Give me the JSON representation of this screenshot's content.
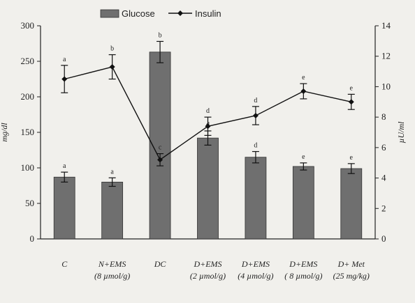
{
  "chart_data": {
    "type": "bar",
    "title": "",
    "categories": [
      [
        "C",
        ""
      ],
      [
        "N+EMS",
        "(8 µmol/g)"
      ],
      [
        "DC",
        ""
      ],
      [
        "D+EMS",
        "(2 µmol/g)"
      ],
      [
        "D+EMS",
        "(4 µmol/g)"
      ],
      [
        "D+EMS",
        "( 8 µmol/g)"
      ],
      [
        "D+ Met",
        "(25 mg/kg)"
      ]
    ],
    "series": [
      {
        "name": "Glucose",
        "type": "bar",
        "axis": "left",
        "values": [
          87,
          80,
          263,
          142,
          115,
          102,
          99
        ],
        "errors": [
          7,
          6,
          15,
          10,
          8,
          5,
          7
        ],
        "letters": [
          "a",
          "a",
          "b",
          "d",
          "d",
          "e",
          "e"
        ],
        "color": "#6f6f6f"
      },
      {
        "name": "Insulin",
        "type": "line",
        "axis": "right",
        "values": [
          10.5,
          11.3,
          5.2,
          7.4,
          8.1,
          9.7,
          9.0
        ],
        "errors": [
          0.9,
          0.8,
          0.4,
          0.6,
          0.6,
          0.5,
          0.5
        ],
        "letters": [
          "a",
          "b",
          "c",
          "d",
          "d",
          "e",
          "e"
        ],
        "color": "#111111"
      }
    ],
    "ylabel": "mg/dl",
    "y2label": "µU/ml",
    "ylim": [
      0,
      300
    ],
    "y2lim": [
      0,
      14
    ],
    "yticks": [
      0,
      50,
      100,
      150,
      200,
      250,
      300
    ],
    "y2ticks": [
      0,
      2,
      4,
      6,
      8,
      10,
      12,
      14
    ],
    "legend": "top-center",
    "grid": false
  }
}
